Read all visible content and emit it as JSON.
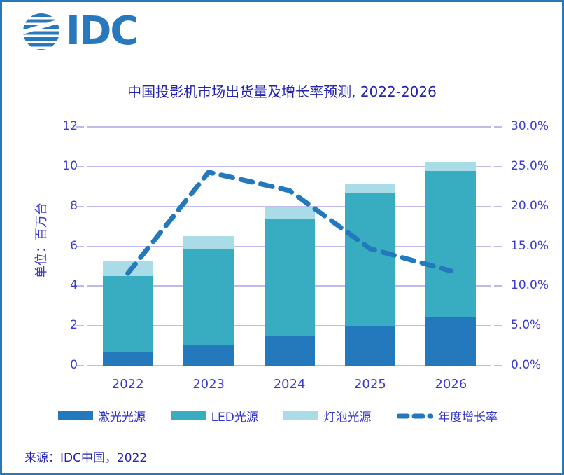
{
  "logo": {
    "text": "IDC",
    "color": "#2878BE"
  },
  "source": {
    "text": "来源：IDC中国，2022"
  },
  "colors": {
    "frame_border": "#2878BE",
    "gridline": "#BEBAEC",
    "axis_text": "#3B3BCD",
    "title_text": "#2323AE",
    "laser_bar": "#2478BC",
    "led_bar": "#38ADC2",
    "bulb_bar": "#A9DCE6",
    "growth_line": "#2478BC"
  },
  "chart_data": {
    "type": "bar",
    "subtype": "stacked-bars-with-line",
    "title": "中国投影机市场出货量及增长率预测, 2022-2026",
    "categories": [
      "2022",
      "2023",
      "2024",
      "2025",
      "2026"
    ],
    "series": [
      {
        "name": "激光光源",
        "type": "bar",
        "color": "#2478BC",
        "values": [
          0.7,
          1.05,
          1.5,
          2.0,
          2.45
        ]
      },
      {
        "name": "LED光源",
        "type": "bar",
        "color": "#38ADC2",
        "values": [
          3.8,
          4.8,
          5.9,
          6.7,
          7.35
        ]
      },
      {
        "name": "灯泡光源",
        "type": "bar",
        "color": "#A9DCE6",
        "values": [
          0.75,
          0.65,
          0.55,
          0.45,
          0.45
        ]
      },
      {
        "name": "年度增长率",
        "type": "line",
        "style": "dashed",
        "color": "#2478BC",
        "axis": "right",
        "values_pct": [
          11.6,
          24.3,
          22.0,
          14.7,
          11.9
        ]
      }
    ],
    "totals": [
      5.25,
      6.5,
      7.95,
      9.15,
      10.25
    ],
    "left_axis": {
      "label": "单位：百万台",
      "min": 0,
      "max": 12,
      "ticks": [
        0,
        2,
        4,
        6,
        8,
        10,
        12
      ],
      "tick_labels_top_down": [
        "12",
        "10",
        "8",
        "6",
        "4",
        "2",
        "0"
      ]
    },
    "right_axis": {
      "min": 0,
      "max": 30,
      "tick_labels_top_down": [
        "30.0%",
        "25.0%",
        "20.0%",
        "15.0%",
        "10.0%",
        "5.0%",
        "0.0%"
      ]
    },
    "grid": "horizontal-on",
    "legend_position": "bottom"
  },
  "legend": {
    "items": [
      {
        "label": "激光光源",
        "swatch": "solid",
        "color": "#2478BC"
      },
      {
        "label": "LED光源",
        "swatch": "solid",
        "color": "#38ADC2"
      },
      {
        "label": "灯泡光源",
        "swatch": "solid",
        "color": "#A9DCE6"
      },
      {
        "label": "年度增长率",
        "swatch": "dashed-line",
        "color": "#2478BC"
      }
    ]
  }
}
